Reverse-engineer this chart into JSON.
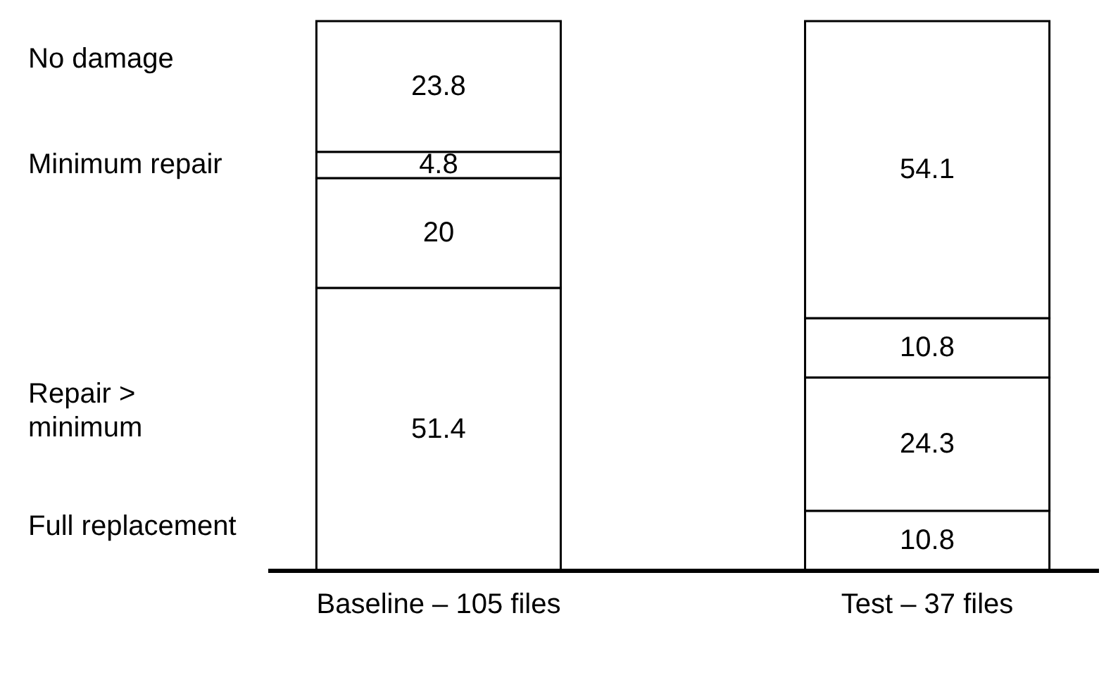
{
  "chart_data": {
    "type": "bar",
    "stacked": true,
    "data_labels": true,
    "tick_labels": "x",
    "ylim": [
      0,
      100
    ],
    "categories": [
      "Baseline – 105 files",
      "Test – 37 files"
    ],
    "series": [
      {
        "color": "#ffffff",
        "values": [
          51.4,
          10.8
        ]
      },
      {
        "color": "#ffffff",
        "values": [
          20,
          24.3
        ]
      },
      {
        "color": "#ffffff",
        "values": [
          4.8,
          10.8
        ]
      },
      {
        "color": "#ffffff",
        "values": [
          23.8,
          54.1
        ]
      }
    ],
    "annotations": [
      "No damage",
      "Minimum repair",
      "Repair > minimum",
      "Full replacement"
    ]
  }
}
